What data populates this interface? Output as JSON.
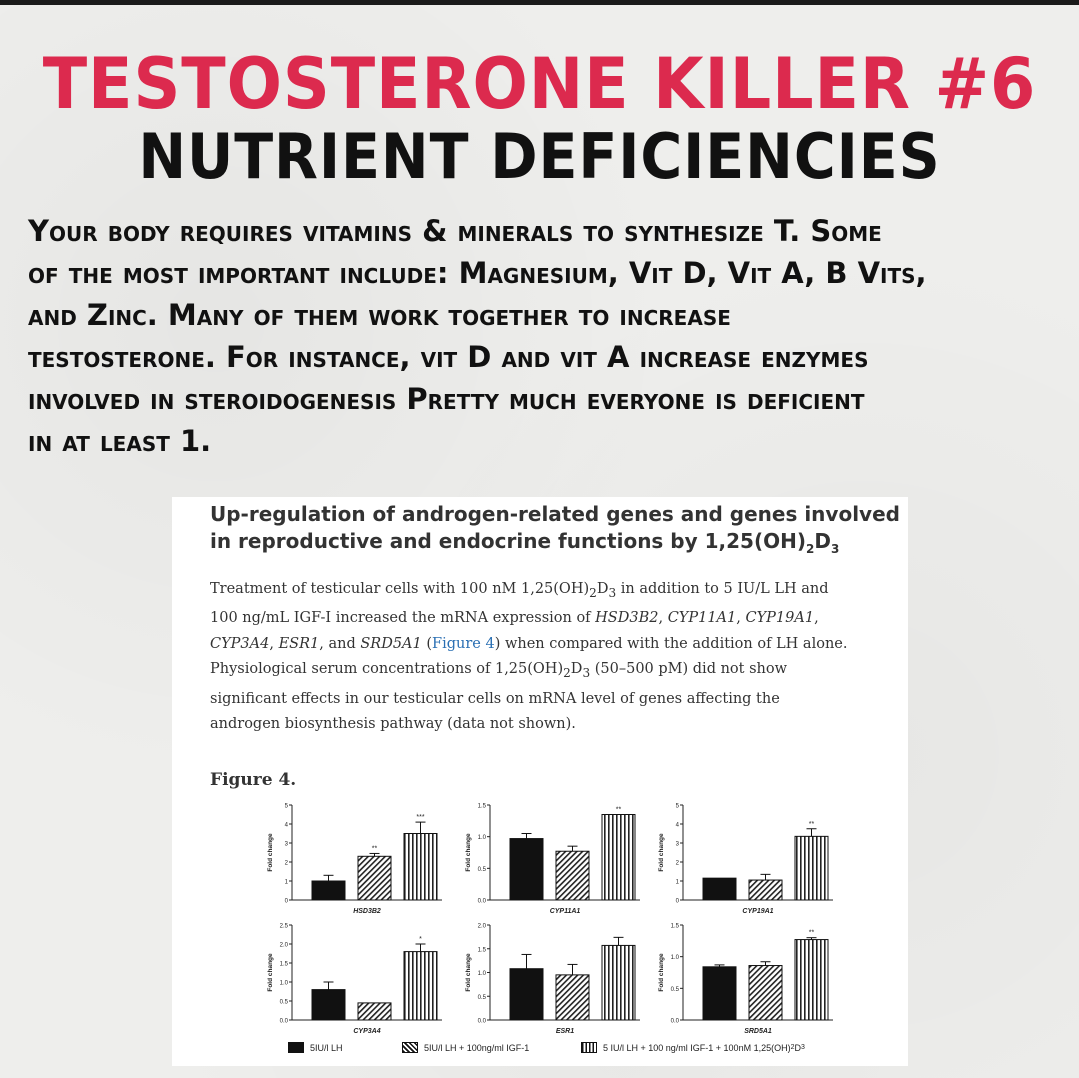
{
  "title_line1": "TESTOSTERONE KILLER #6",
  "title_line2": "NUTRIENT DEFICIENCIES",
  "body_lines": [
    "Your body requires vitamins & minerals to synthesize T. Some",
    "of the most important include: Magnesium, Vit D, Vit A, B Vits,",
    "and Zinc. Many of them work together to increase",
    "testosterone. For instance, vit D and vit A increase enzymes",
    "involved in steroidogenesis Pretty much everyone is deficient",
    "in at least 1."
  ],
  "colors": {
    "title_red": "#dc2a4e",
    "title_black": "#111111",
    "link_blue": "#2a6fb3"
  },
  "paper": {
    "heading_line1": "Up-regulation of androgen-related genes and genes involved",
    "heading_line2_prefix": "in reproductive and endocrine functions by 1,25(OH)",
    "heading_sub1": "2",
    "heading_mid": "D",
    "heading_sub2": "3",
    "para": {
      "l1_a": "Treatment of testicular cells with 100 nM 1,25(OH)",
      "l1_sub1": "2",
      "l1_b": "D",
      "l1_sub2": "3",
      "l1_c": " in addition to 5 IU/L LH and",
      "l2_a": "100 ng/mL IGF-I increased the mRNA expression of ",
      "l2_g1": "HSD3B2",
      "l2_sep1": ", ",
      "l2_g2": "CYP11A1",
      "l2_sep2": ", ",
      "l2_g3": "CYP19A1",
      "l2_end": ",",
      "l3_g1": "CYP3A4",
      "l3_sep1": ", ",
      "l3_g2": "ESR1",
      "l3_mid": ", and ",
      "l3_g3": "SRD5A1",
      "l3_open": " (",
      "l3_link": "Figure 4",
      "l3_close": ") when compared with the addition of LH alone.",
      "l4_a": "Physiological serum concentrations of 1,25(OH)",
      "l4_sub1": "2",
      "l4_b": "D",
      "l4_sub2": "3",
      "l4_c": " (50–500 pM) did not show",
      "l5": "significant effects in our testicular cells on mRNA level of genes affecting the",
      "l6": "androgen biosynthesis pathway (data not shown)."
    },
    "figure_label": "Figure 4."
  },
  "chart_data": [
    {
      "type": "bar",
      "gene": "HSD3B2",
      "ylabel": "Fold change",
      "ylim": [
        0,
        5
      ],
      "yticks": [
        "0",
        "1",
        "2",
        "3",
        "4",
        "5"
      ],
      "values": [
        1.0,
        2.3,
        3.5
      ],
      "errors": [
        0.3,
        0.15,
        0.6
      ],
      "sig": [
        "",
        "**",
        "***"
      ]
    },
    {
      "type": "bar",
      "gene": "CYP11A1",
      "ylabel": "Fold change",
      "ylim": [
        0,
        1.5
      ],
      "yticks": [
        "0.0",
        "0.5",
        "1.0",
        "1.5"
      ],
      "values": [
        0.97,
        0.77,
        1.35
      ],
      "errors": [
        0.08,
        0.08,
        0.0
      ],
      "sig": [
        "",
        "",
        "**"
      ]
    },
    {
      "type": "bar",
      "gene": "CYP19A1",
      "ylabel": "Fold change",
      "ylim": [
        0,
        5
      ],
      "yticks": [
        "0",
        "1",
        "2",
        "3",
        "4",
        "5"
      ],
      "values": [
        1.15,
        1.05,
        3.35
      ],
      "errors": [
        0.0,
        0.3,
        0.4
      ],
      "sig": [
        "",
        "",
        "**"
      ]
    },
    {
      "type": "bar",
      "gene": "CYP3A4",
      "ylabel": "Fold change",
      "ylim": [
        0,
        2.5
      ],
      "yticks": [
        "0.0",
        "0.5",
        "1.0",
        "1.5",
        "2.0",
        "2.5"
      ],
      "values": [
        0.8,
        0.45,
        1.8
      ],
      "errors": [
        0.2,
        0.0,
        0.2
      ],
      "sig": [
        "",
        "",
        "*"
      ]
    },
    {
      "type": "bar",
      "gene": "ESR1",
      "ylabel": "Fold change",
      "ylim": [
        0,
        2.0
      ],
      "yticks": [
        "0.0",
        "0.5",
        "1.0",
        "1.5",
        "2.0"
      ],
      "values": [
        1.08,
        0.95,
        1.57
      ],
      "errors": [
        0.3,
        0.22,
        0.17
      ],
      "sig": [
        "",
        "",
        ""
      ]
    },
    {
      "type": "bar",
      "gene": "SRD5A1",
      "ylabel": "Fold change",
      "ylim": [
        0,
        1.5
      ],
      "yticks": [
        "0.0",
        "0.5",
        "1.0",
        "1.5"
      ],
      "values": [
        0.84,
        0.86,
        1.27
      ],
      "errors": [
        0.03,
        0.06,
        0.03
      ],
      "sig": [
        "",
        "",
        "**"
      ]
    }
  ],
  "legend": {
    "item1": "5IU/l LH",
    "item2": "5IU/l LH + 100ng/ml IGF-1",
    "item3_a": "5 IU/l LH + 100 ng/ml IGF-1 + 100nM 1,25(OH)",
    "item3_sub1": "2",
    "item3_b": "D",
    "item3_sub2": "3"
  }
}
